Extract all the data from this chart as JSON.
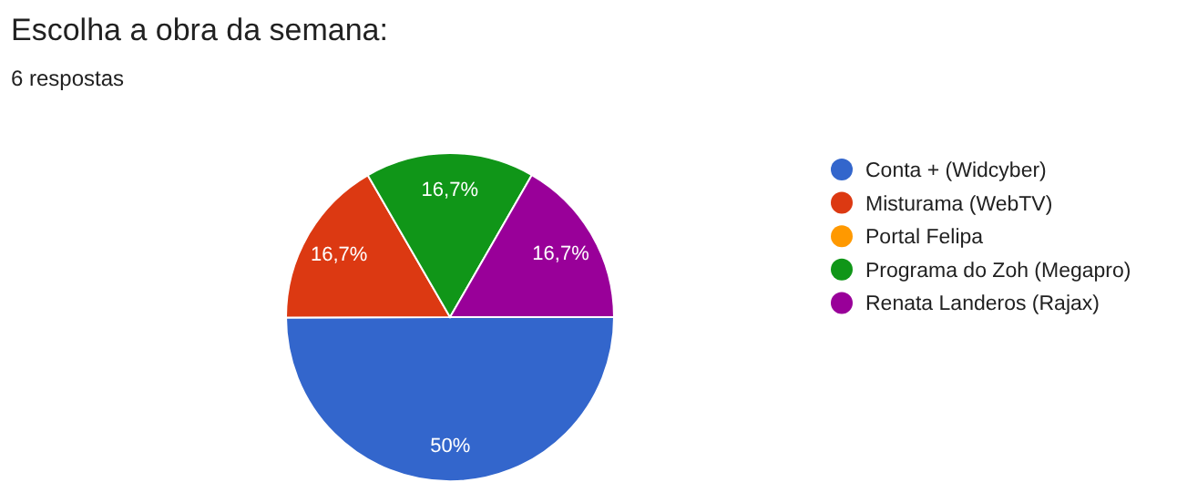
{
  "chart_data": {
    "type": "pie",
    "title": "Escolha a obra da semana:",
    "subtitle": "6 respostas",
    "categories": [
      "Conta + (Widcyber)",
      "Misturama (WebTV)",
      "Portal Felipa",
      "Programa do Zoh (Megapro)",
      "Renata Landeros (Rajax)"
    ],
    "values": [
      50,
      16.7,
      0,
      16.7,
      16.7
    ],
    "colors": [
      "#3366cc",
      "#dc3912",
      "#ff9900",
      "#109618",
      "#990099"
    ],
    "value_labels": [
      "50%",
      "16,7%",
      null,
      "16,7%",
      "16,7%"
    ],
    "legend": "right"
  }
}
